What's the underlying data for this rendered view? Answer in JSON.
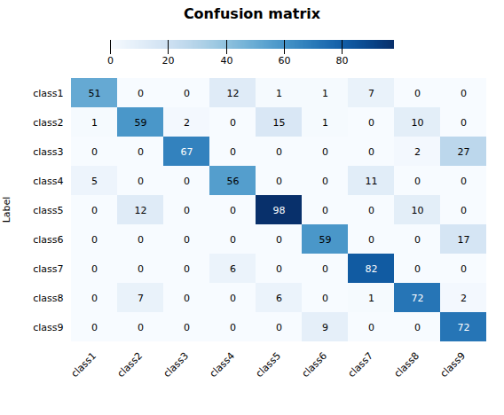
{
  "chart_data": {
    "type": "heatmap",
    "title": "Confusion matrix",
    "categories": [
      "class1",
      "class2",
      "class3",
      "class4",
      "class5",
      "class6",
      "class7",
      "class8",
      "class9"
    ],
    "matrix": [
      [
        51,
        0,
        0,
        12,
        1,
        1,
        7,
        0,
        0
      ],
      [
        1,
        59,
        2,
        0,
        15,
        1,
        0,
        10,
        0
      ],
      [
        0,
        0,
        67,
        0,
        0,
        0,
        0,
        2,
        27
      ],
      [
        5,
        0,
        0,
        56,
        0,
        0,
        11,
        0,
        0
      ],
      [
        0,
        12,
        0,
        0,
        98,
        0,
        0,
        10,
        0
      ],
      [
        0,
        0,
        0,
        0,
        0,
        59,
        0,
        0,
        17
      ],
      [
        0,
        0,
        0,
        6,
        0,
        0,
        82,
        0,
        0
      ],
      [
        0,
        7,
        0,
        0,
        6,
        0,
        1,
        72,
        2
      ],
      [
        0,
        0,
        0,
        0,
        0,
        9,
        0,
        0,
        72
      ]
    ],
    "ylabel": "Label",
    "color": "Blues",
    "colorbar_range": [
      0,
      98
    ],
    "colorbar_ticks": [
      0,
      20,
      40,
      60,
      80
    ],
    "data_labels": true
  }
}
